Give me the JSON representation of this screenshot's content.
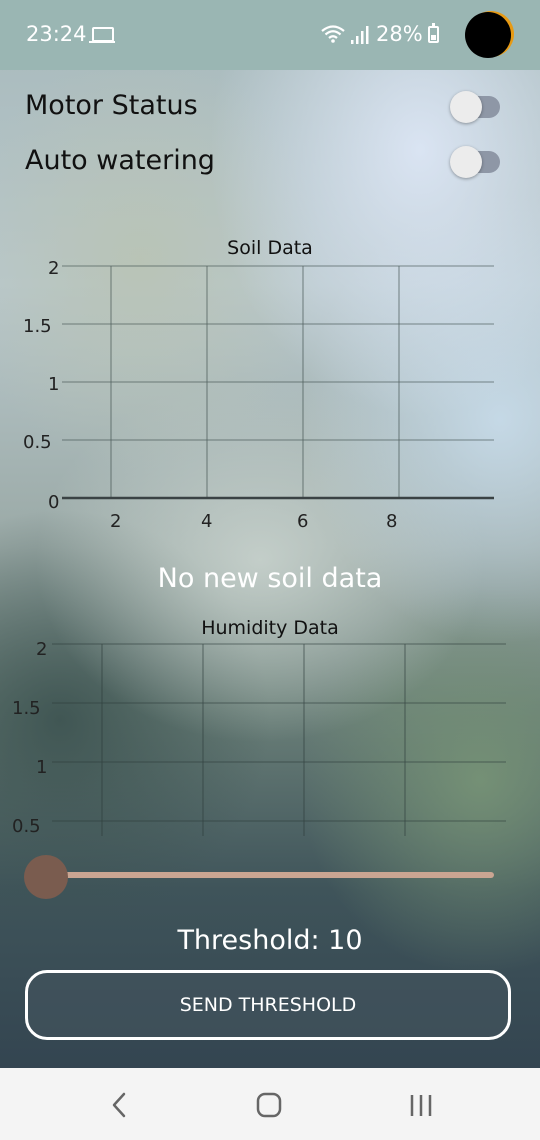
{
  "status_bar": {
    "time": "23:24",
    "battery_text": "28%",
    "icons": [
      "laptop-icon",
      "wifi-icon",
      "signal-icon",
      "battery-icon"
    ]
  },
  "controls": {
    "motor_status": {
      "label": "Motor Status",
      "on": false
    },
    "auto_watering": {
      "label": "Auto watering",
      "on": false
    }
  },
  "soil_chart": {
    "title": "Soil Data",
    "y_ticks": [
      "2",
      "1.5",
      "1",
      "0.5",
      "0"
    ],
    "x_ticks": [
      "2",
      "4",
      "6",
      "8"
    ]
  },
  "soil_message": "No new soil data",
  "humidity_chart": {
    "title": "Humidity Data",
    "y_ticks": [
      "2",
      "1.5",
      "1",
      "0.5"
    ]
  },
  "threshold": {
    "label": "Threshold: 10",
    "slider_fraction": 0.0
  },
  "send_button": "SEND THRESHOLD",
  "nav": {
    "icons": [
      "back-icon",
      "home-icon",
      "recents-icon"
    ]
  },
  "chart_data": [
    {
      "type": "line",
      "title": "Soil Data",
      "x_ticks": [
        2,
        4,
        6,
        8
      ],
      "ylim": [
        0,
        2
      ],
      "y_ticks": [
        0,
        0.5,
        1,
        1.5,
        2
      ],
      "series": [],
      "grid": true
    },
    {
      "type": "line",
      "title": "Humidity Data",
      "ylim": [
        0.5,
        2
      ],
      "y_ticks": [
        0.5,
        1,
        1.5,
        2
      ],
      "series": [],
      "grid": true
    }
  ]
}
